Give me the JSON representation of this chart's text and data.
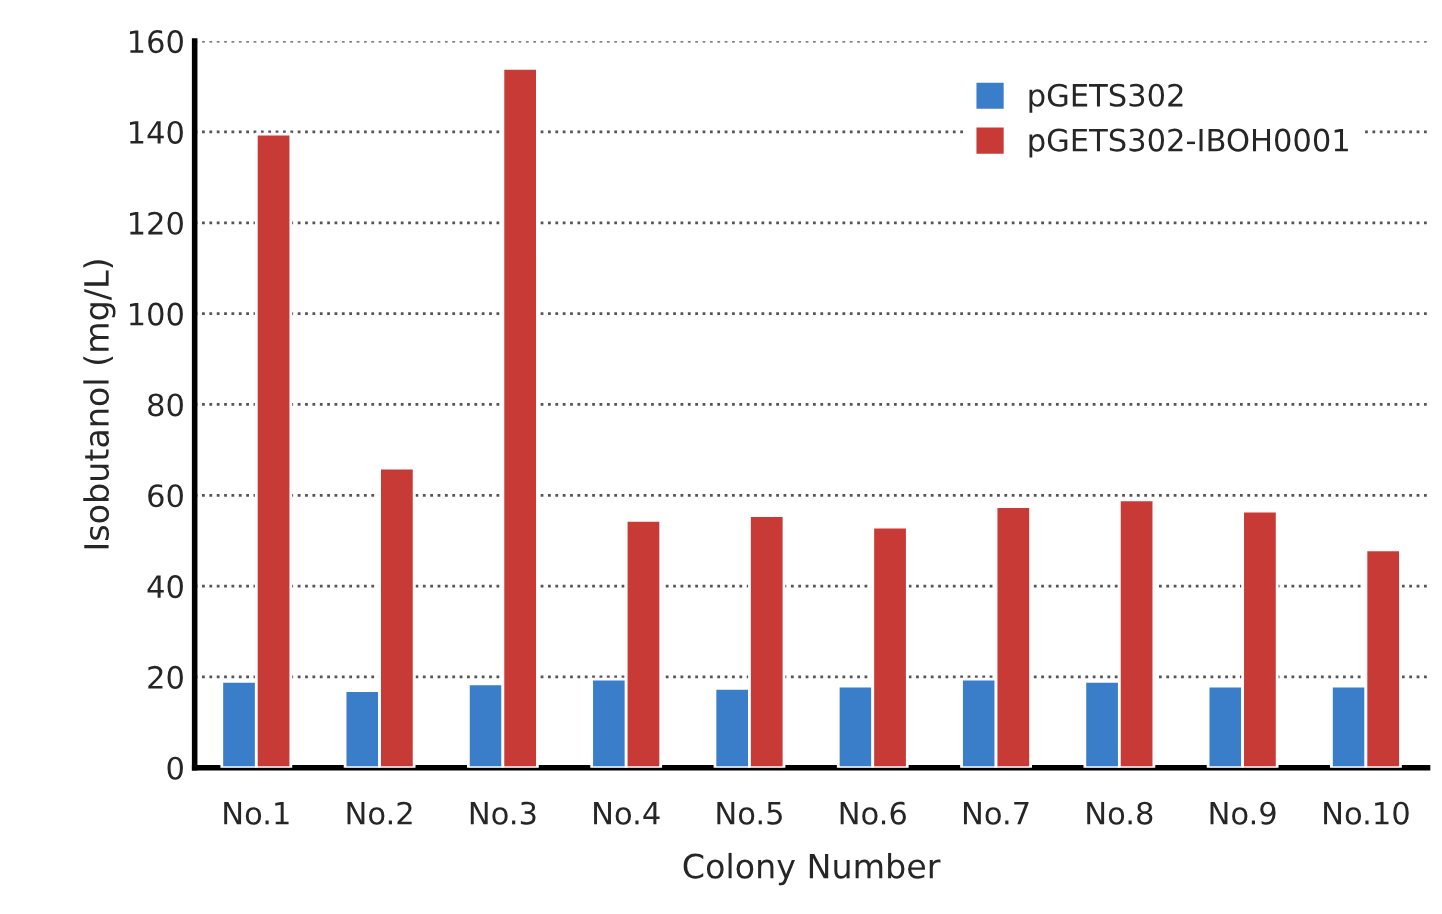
{
  "chart_data": {
    "type": "bar",
    "xlabel": "Colony Number",
    "ylabel": "Isobutanol (mg/L)",
    "categories": [
      "No.1",
      "No.2",
      "No.3",
      "No.4",
      "No.5",
      "No.6",
      "No.7",
      "No.8",
      "No.9",
      "No.10"
    ],
    "series": [
      {
        "name": "pGETS302",
        "color": "#3a7dc9",
        "values": [
          19,
          17,
          18.5,
          19.5,
          17.5,
          18,
          19.5,
          19,
          18,
          18
        ]
      },
      {
        "name": "pGETS302-IBOH0001",
        "color": "#c83a36",
        "values": [
          139.5,
          66,
          154,
          54.5,
          55.5,
          53,
          57.5,
          59,
          56.5,
          48
        ]
      }
    ],
    "ylim": [
      0,
      160
    ],
    "yticks": [
      0,
      20,
      40,
      60,
      80,
      100,
      120,
      140,
      160
    ],
    "grid": "y",
    "legend": "top right"
  }
}
